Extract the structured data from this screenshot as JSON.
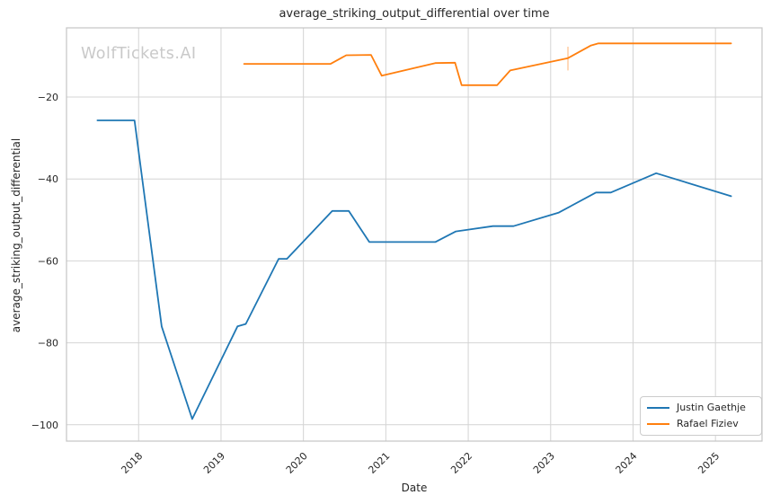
{
  "chart": {
    "title": "average_striking_output_differential over time",
    "xlabel": "Date",
    "ylabel": "average_striking_output_differential",
    "watermark": "WolfTickets.AI",
    "legend": {
      "position": "lower right",
      "items": [
        {
          "label": "Justin Gaethje",
          "color": "#1f77b4"
        },
        {
          "label": "Rafael Fiziev",
          "color": "#ff7f0e"
        }
      ]
    },
    "colors": {
      "grid": "#d4d4d4",
      "frame": "#c4c4c4",
      "text": "#262626",
      "background": "#ffffff"
    }
  },
  "chart_data": {
    "type": "line",
    "title": "average_striking_output_differential over time",
    "xlabel": "Date",
    "ylabel": "average_striking_output_differential",
    "grid": true,
    "legend_position": "lower right",
    "xlim": [
      2017.125,
      2025.565
    ],
    "ylim": [
      -104,
      -3.1
    ],
    "x_tick_values": [
      2018,
      2019,
      2020,
      2021,
      2022,
      2023,
      2024,
      2025
    ],
    "x_tick_labels": [
      "2018",
      "2019",
      "2020",
      "2021",
      "2022",
      "2023",
      "2024",
      "2025"
    ],
    "y_tick_values": [
      -20,
      -40,
      -60,
      -80,
      -100
    ],
    "y_tick_labels": [
      "−20",
      "−40",
      "−60",
      "−80",
      "−100"
    ],
    "series": [
      {
        "name": "Justin Gaethje",
        "color": "#1f77b4",
        "points": [
          [
            2017.5,
            -25.7
          ],
          [
            2017.95,
            -25.7
          ],
          [
            2018.28,
            -76.0
          ],
          [
            2018.65,
            -98.6
          ],
          [
            2019.2,
            -76.0
          ],
          [
            2019.3,
            -75.4
          ],
          [
            2019.7,
            -59.5
          ],
          [
            2019.8,
            -59.5
          ],
          [
            2020.35,
            -47.8
          ],
          [
            2020.55,
            -47.8
          ],
          [
            2020.8,
            -55.4
          ],
          [
            2021.6,
            -55.4
          ],
          [
            2021.85,
            -52.8
          ],
          [
            2022.3,
            -51.5
          ],
          [
            2022.55,
            -51.5
          ],
          [
            2023.1,
            -48.2
          ],
          [
            2023.55,
            -43.3
          ],
          [
            2023.73,
            -43.3
          ],
          [
            2024.28,
            -38.6
          ],
          [
            2025.19,
            -44.2
          ]
        ]
      },
      {
        "name": "Rafael Fiziev",
        "color": "#ff7f0e",
        "points": [
          [
            2019.28,
            -11.9
          ],
          [
            2020.33,
            -11.9
          ],
          [
            2020.52,
            -9.8
          ],
          [
            2020.82,
            -9.7
          ],
          [
            2020.95,
            -14.8
          ],
          [
            2021.6,
            -11.7
          ],
          [
            2021.84,
            -11.6
          ],
          [
            2021.92,
            -17.1
          ],
          [
            2022.35,
            -17.1
          ],
          [
            2022.51,
            -13.5
          ],
          [
            2023.21,
            -10.5
          ],
          [
            2023.49,
            -7.4
          ],
          [
            2023.58,
            -6.9
          ],
          [
            2025.19,
            -6.9
          ]
        ]
      }
    ],
    "annotations": [
      {
        "type": "vline-segment",
        "x": 2023.21,
        "y1": -13.5,
        "y2": -7.7,
        "color": "#ffc08a"
      }
    ]
  }
}
